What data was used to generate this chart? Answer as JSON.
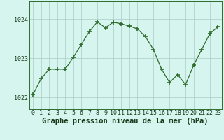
{
  "x": [
    0,
    1,
    2,
    3,
    4,
    5,
    6,
    7,
    8,
    9,
    10,
    11,
    12,
    13,
    14,
    15,
    16,
    17,
    18,
    19,
    20,
    21,
    22,
    23
  ],
  "y": [
    1022.08,
    1022.48,
    1022.72,
    1022.72,
    1022.72,
    1023.02,
    1023.35,
    1023.68,
    1023.93,
    1023.78,
    1023.92,
    1023.88,
    1023.82,
    1023.75,
    1023.55,
    1023.22,
    1022.72,
    1022.38,
    1022.58,
    1022.33,
    1022.82,
    1023.22,
    1023.62,
    1023.8
  ],
  "bg_color": "#d6f5ef",
  "line_color": "#2d6b2d",
  "marker": "+",
  "markersize": 4,
  "linewidth": 0.9,
  "markeredgewidth": 1.2,
  "title": "Graphe pression niveau de la mer (hPa)",
  "yticks": [
    1022,
    1023,
    1024
  ],
  "ylim": [
    1021.7,
    1024.45
  ],
  "xlim": [
    -0.5,
    23.5
  ],
  "grid_color": "#aaccc4",
  "title_color": "#1a3a1a",
  "tick_color": "#1a3a1a",
  "spine_color": "#2d6b2d",
  "title_fontsize": 7.5,
  "tick_fontsize": 6.0,
  "title_fontweight": "bold"
}
